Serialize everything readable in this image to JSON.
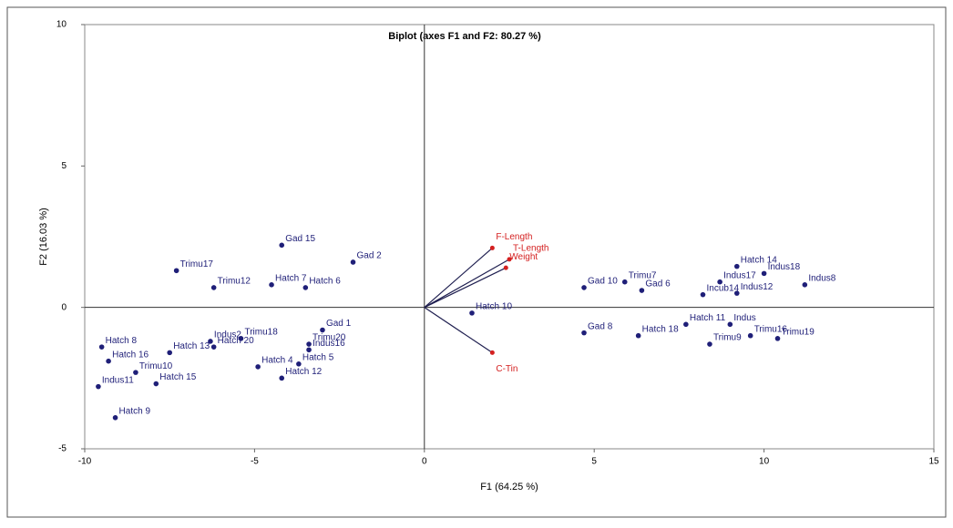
{
  "chart_data": {
    "type": "biplot",
    "title": "Biplot (axes F1 and F2: 80.27 %)",
    "x_label": "F1 (64.25 %)",
    "y_label": "F2 (16.03 %)",
    "xlim": [
      -10,
      15
    ],
    "xticks": [
      -10,
      -5,
      0,
      5,
      10,
      15
    ],
    "ylim": [
      -5,
      10
    ],
    "yticks": [
      -5,
      0,
      5,
      10
    ],
    "point_color": "#1f1f78",
    "vector_color": "#1f1f50",
    "vector_label_color": "#d42020",
    "points": {
      "labels": [
        "Gad 15",
        "Gad 2",
        "Trimu17",
        "Hatch 7",
        "Trimu12",
        "Hatch 6",
        "Gad 1",
        "Trimu18",
        "Indus2",
        "Trimu20",
        "Indus16",
        "Hatch 20",
        "Hatch 13",
        "Hatch 16",
        "Hatch 8",
        "Trimu10",
        "Indus11",
        "Hatch 15",
        "Hatch 9",
        "Hatch 4",
        "Hatch 5",
        "Hatch 12",
        "Gad 10",
        "Trimu7",
        "Gad 6",
        "Incub14",
        "Hatch 14",
        "Indus17",
        "Indus18",
        "Indus8",
        "Indus12",
        "Hatch 11",
        "Indus",
        "Trimu16",
        "Trimu19",
        "Trimu9",
        "Hatch 18",
        "Gad 8",
        "Hatch 10"
      ],
      "x": [
        -4.2,
        -2.1,
        -7.3,
        -4.5,
        -6.2,
        -3.5,
        -3,
        -5.4,
        -6.3,
        -3.4,
        -3.4,
        -6.2,
        -7.5,
        -9.3,
        -9.5,
        -8.5,
        -9.6,
        -7.9,
        -9.1,
        -4.9,
        -3.7,
        -4.2,
        4.7,
        5.9,
        6.4,
        8.2,
        9.2,
        8.7,
        10,
        11.2,
        9.2,
        7.7,
        9,
        9.6,
        10.4,
        8.4,
        6.3,
        4.7,
        1.4
      ],
      "y": [
        2.2,
        1.6,
        1.3,
        0.8,
        0.7,
        0.7,
        -0.8,
        -1.1,
        -1.2,
        -1.3,
        -1.5,
        -1.4,
        -1.6,
        -1.9,
        -1.4,
        -2.3,
        -2.8,
        -2.7,
        -3.9,
        -2.1,
        -2,
        -2.5,
        0.7,
        0.9,
        0.6,
        0.45,
        1.45,
        0.9,
        1.2,
        0.8,
        0.5,
        -0.6,
        -0.6,
        -1,
        -1.1,
        -1.3,
        -1,
        -0.9,
        -0.2
      ]
    },
    "vectors": {
      "labels": [
        "F-Length",
        "T-Length",
        "Weight",
        "C-Tin"
      ],
      "x": [
        2,
        2.5,
        2.4,
        2
      ],
      "y": [
        2.1,
        1.7,
        1.4,
        -1.6
      ]
    }
  }
}
